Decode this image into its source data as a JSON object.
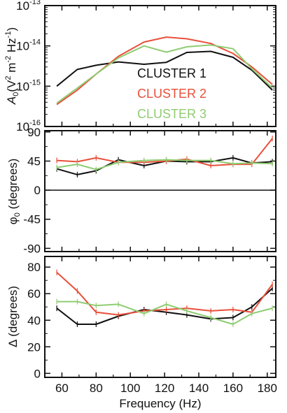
{
  "chart_data": {
    "type": "line",
    "x_axis": {
      "label": "Frequency (Hz)",
      "lim": [
        50,
        185
      ],
      "ticks": [
        "60",
        "80",
        "100",
        "120",
        "140",
        "160",
        "180"
      ]
    },
    "legend": {
      "placement": "center-right of top panel",
      "entries": [
        "CLUSTER 1",
        "CLUSTER 2",
        "CLUSTER 3"
      ]
    },
    "colors": {
      "CLUSTER 1": "#111111",
      "CLUSTER 2": "#e8503a",
      "CLUSTER 3": "#8fcc72"
    },
    "panels": [
      {
        "id": "A0",
        "ylabel": {
          "sym": "A",
          "sub": "0",
          "units": "(V",
          "u_sup1": "2",
          "u_mid": " m",
          "u_sup2": "-2",
          "u_mid2": " Hz",
          "u_sup3": "-1",
          "u_end": ")"
        },
        "yscale": "log",
        "ylim": [
          1e-16,
          1e-13
        ],
        "ytick_labels": [
          {
            "base": "10",
            "exp": "-13"
          },
          {
            "base": "10",
            "exp": "-14"
          },
          {
            "base": "10",
            "exp": "-15"
          },
          {
            "base": "10",
            "exp": "-16"
          }
        ],
        "series": [
          {
            "name": "CLUSTER 1",
            "x": [
              57,
              69,
              80,
              93,
              108,
              121,
              133,
              147,
              160,
              171,
              183
            ],
            "y": [
              1e-15,
              2.6e-15,
              3.3e-15,
              4e-15,
              3.5e-15,
              3.9e-15,
              6.9e-15,
              7.3e-15,
              5.2e-15,
              2.5e-15,
              8e-16
            ]
          },
          {
            "name": "CLUSTER 2",
            "x": [
              57,
              69,
              80,
              93,
              108,
              121,
              133,
              147,
              160,
              171,
              183
            ],
            "y": [
              3.5e-16,
              8e-16,
              2e-15,
              5.5e-15,
              1.25e-14,
              1.65e-14,
              1.5e-14,
              1.15e-14,
              6.5e-15,
              3e-15,
              1.1e-15
            ]
          },
          {
            "name": "CLUSTER 3",
            "x": [
              57,
              69,
              80,
              93,
              108,
              121,
              133,
              147,
              160,
              171,
              183
            ],
            "y": [
              3.8e-16,
              9e-16,
              2e-15,
              5e-15,
              1e-14,
              7e-15,
              9.5e-15,
              1.05e-14,
              8.5e-15,
              2.7e-15,
              9e-16
            ]
          }
        ]
      },
      {
        "id": "phi0",
        "ylabel": {
          "sym": "φ",
          "sub": "0",
          "units": " (degrees)"
        },
        "yscale": "linear",
        "ylim": [
          -95,
          92
        ],
        "ytick_values": [
          90,
          45,
          0,
          -45,
          -90
        ],
        "zero_line": true,
        "series": [
          {
            "name": "CLUSTER 1",
            "x": [
              57,
              69,
              80,
              93,
              108,
              121,
              133,
              147,
              160,
              171,
              183
            ],
            "y": [
              33,
              24,
              30,
              47,
              38,
              45,
              44,
              44,
              50,
              42,
              44
            ]
          },
          {
            "name": "CLUSTER 2",
            "x": [
              57,
              69,
              80,
              93,
              108,
              121,
              133,
              147,
              160,
              171,
              183
            ],
            "y": [
              46,
              44,
              50,
              43,
              43,
              45,
              48,
              38,
              40,
              40,
              80
            ]
          },
          {
            "name": "CLUSTER 3",
            "x": [
              57,
              69,
              80,
              93,
              108,
              121,
              133,
              147,
              160,
              171,
              183
            ],
            "y": [
              35,
              40,
              32,
              43,
              46,
              47,
              46,
              46,
              41,
              42,
              41
            ]
          }
        ]
      },
      {
        "id": "delta",
        "ylabel": {
          "sym": "Δ",
          "sub": "",
          "units": " (degrees)"
        },
        "yscale": "linear",
        "ylim": [
          -3,
          88
        ],
        "ytick_values": [
          0,
          20,
          40,
          60,
          80
        ],
        "series": [
          {
            "name": "CLUSTER 1",
            "x": [
              57,
              69,
              80,
              93,
              108,
              121,
              133,
              147,
              160,
              171,
              183
            ],
            "y": [
              49,
              37,
              37,
              43,
              48,
              46,
              44,
              41,
              42,
              50,
              64
            ]
          },
          {
            "name": "CLUSTER 2",
            "x": [
              57,
              69,
              80,
              93,
              108,
              121,
              133,
              147,
              160,
              171,
              183
            ],
            "y": [
              76,
              62,
              46,
              44,
              47,
              48,
              49,
              47,
              48,
              46,
              67
            ]
          },
          {
            "name": "CLUSTER 3",
            "x": [
              57,
              69,
              80,
              93,
              108,
              121,
              133,
              147,
              160,
              171,
              183
            ],
            "y": [
              54,
              54,
              51,
              52,
              45,
              52,
              47,
              42,
              37,
              45,
              49
            ]
          }
        ]
      }
    ]
  }
}
